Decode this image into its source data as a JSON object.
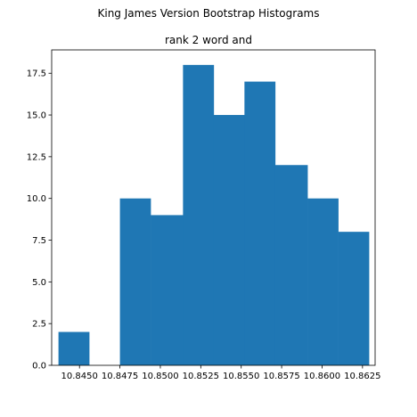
{
  "chart_data": {
    "type": "bar",
    "suptitle": "King James Version Bootstrap Histograms",
    "title": "rank 2 word and",
    "xlabel": "",
    "ylabel": "",
    "bins": [
      {
        "x0": 10.8437,
        "x1": 10.8456,
        "count": 2
      },
      {
        "x0": 10.8456,
        "x1": 10.8475,
        "count": 0
      },
      {
        "x0": 10.8475,
        "x1": 10.8494,
        "count": 10
      },
      {
        "x0": 10.8494,
        "x1": 10.8514,
        "count": 9
      },
      {
        "x0": 10.8514,
        "x1": 10.8533,
        "count": 18
      },
      {
        "x0": 10.8533,
        "x1": 10.8552,
        "count": 15
      },
      {
        "x0": 10.8552,
        "x1": 10.8571,
        "count": 17
      },
      {
        "x0": 10.8571,
        "x1": 10.8591,
        "count": 12
      },
      {
        "x0": 10.8591,
        "x1": 10.861,
        "count": 10
      },
      {
        "x0": 10.861,
        "x1": 10.8629,
        "count": 8
      }
    ],
    "xlim": [
      10.84328,
      10.86328
    ],
    "ylim": [
      0,
      18.9
    ],
    "xticks": [
      "10.8450",
      "10.8475",
      "10.8500",
      "10.8525",
      "10.8550",
      "10.8575",
      "10.8600",
      "10.8625"
    ],
    "xtick_values": [
      10.845,
      10.8475,
      10.85,
      10.8525,
      10.855,
      10.8575,
      10.86,
      10.8625
    ],
    "yticks": [
      "0.0",
      "2.5",
      "5.0",
      "7.5",
      "10.0",
      "12.5",
      "15.0",
      "17.5"
    ],
    "ytick_values": [
      0,
      2.5,
      5,
      7.5,
      10,
      12.5,
      15,
      17.5
    ],
    "bar_color": "#1f77b4",
    "grid": false,
    "legend": "none"
  }
}
